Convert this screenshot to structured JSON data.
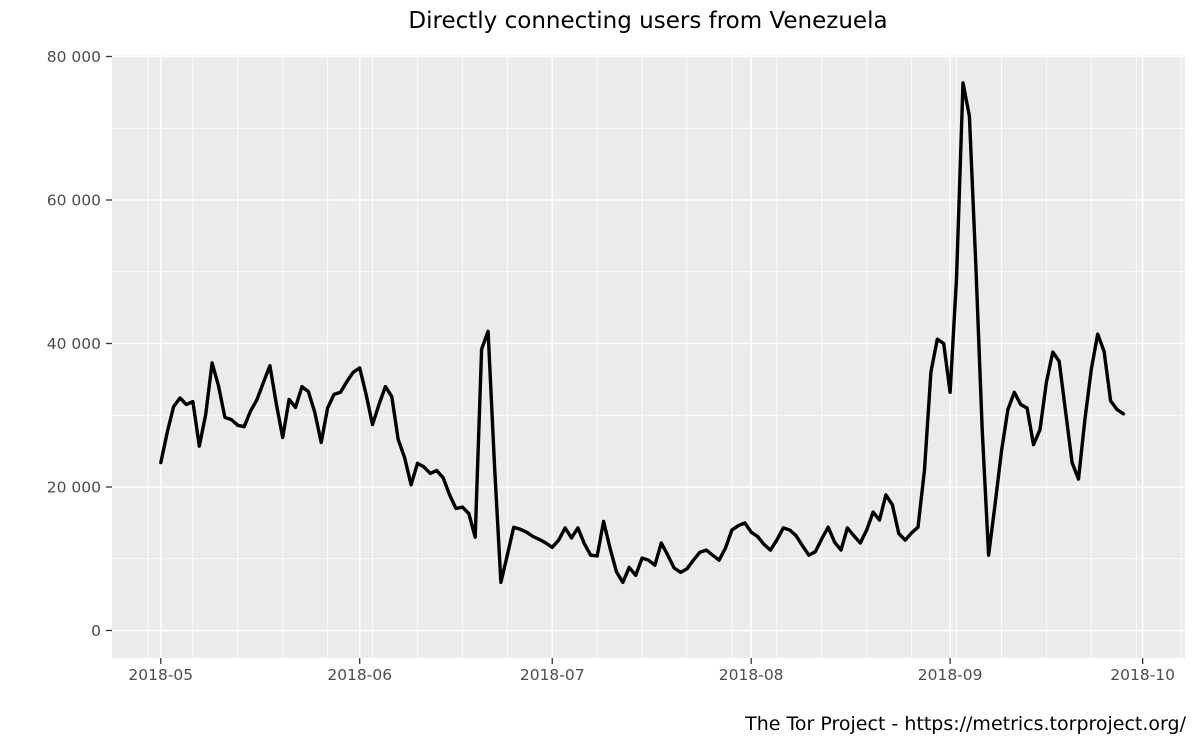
{
  "page": {
    "title": "Directly connecting users from Venezuela",
    "attribution": "The Tor Project - https://metrics.torproject.org/"
  },
  "colors": {
    "page_background": "#FFFFFF",
    "plot_background": "#EBEBEB",
    "gridline": "#FFFFFF",
    "line": "#000000",
    "tick_label": "#4D4D4D",
    "axis_tick": "#333333",
    "title": "#000000"
  },
  "chart_data": {
    "type": "line",
    "title": "Directly connecting users from Venezuela",
    "xlabel": "",
    "ylabel": "",
    "legend": false,
    "grid": true,
    "y_axis": {
      "lim": [
        0,
        80000
      ],
      "major_ticks": [
        0,
        20000,
        40000,
        60000,
        80000
      ],
      "tick_labels": [
        "0",
        "20 000",
        "40 000",
        "60 000",
        "80 000"
      ],
      "minor_ticks": [
        10000,
        30000,
        50000,
        70000
      ]
    },
    "x_axis": {
      "major_tick_dates": [
        "2018-05-01",
        "2018-06-01",
        "2018-07-01",
        "2018-08-01",
        "2018-09-01",
        "2018-10-01"
      ],
      "tick_labels": [
        "2018-05",
        "2018-06",
        "2018-07",
        "2018-08",
        "2018-09",
        "2018-10"
      ],
      "minor_weekly_start": "2018-04-29",
      "domain_days_rel_first_point": [
        -7.6,
        159.6
      ]
    },
    "x": [
      "2018-05-01",
      "2018-05-02",
      "2018-05-03",
      "2018-05-04",
      "2018-05-05",
      "2018-05-06",
      "2018-05-07",
      "2018-05-08",
      "2018-05-09",
      "2018-05-10",
      "2018-05-11",
      "2018-05-12",
      "2018-05-13",
      "2018-05-14",
      "2018-05-15",
      "2018-05-16",
      "2018-05-17",
      "2018-05-18",
      "2018-05-19",
      "2018-05-20",
      "2018-05-21",
      "2018-05-22",
      "2018-05-23",
      "2018-05-24",
      "2018-05-25",
      "2018-05-26",
      "2018-05-27",
      "2018-05-28",
      "2018-05-29",
      "2018-05-30",
      "2018-05-31",
      "2018-06-01",
      "2018-06-02",
      "2018-06-03",
      "2018-06-04",
      "2018-06-05",
      "2018-06-06",
      "2018-06-07",
      "2018-06-08",
      "2018-06-09",
      "2018-06-10",
      "2018-06-11",
      "2018-06-12",
      "2018-06-13",
      "2018-06-14",
      "2018-06-15",
      "2018-06-16",
      "2018-06-17",
      "2018-06-18",
      "2018-06-19",
      "2018-06-20",
      "2018-06-21",
      "2018-06-22",
      "2018-06-23",
      "2018-06-24",
      "2018-06-25",
      "2018-06-26",
      "2018-06-27",
      "2018-06-28",
      "2018-06-29",
      "2018-06-30",
      "2018-07-01",
      "2018-07-02",
      "2018-07-03",
      "2018-07-04",
      "2018-07-05",
      "2018-07-06",
      "2018-07-07",
      "2018-07-08",
      "2018-07-09",
      "2018-07-10",
      "2018-07-11",
      "2018-07-12",
      "2018-07-13",
      "2018-07-14",
      "2018-07-15",
      "2018-07-16",
      "2018-07-17",
      "2018-07-18",
      "2018-07-19",
      "2018-07-20",
      "2018-07-21",
      "2018-07-22",
      "2018-07-23",
      "2018-07-24",
      "2018-07-25",
      "2018-07-26",
      "2018-07-27",
      "2018-07-28",
      "2018-07-29",
      "2018-07-30",
      "2018-07-31",
      "2018-08-01",
      "2018-08-02",
      "2018-08-03",
      "2018-08-04",
      "2018-08-05",
      "2018-08-06",
      "2018-08-07",
      "2018-08-08",
      "2018-08-09",
      "2018-08-10",
      "2018-08-11",
      "2018-08-12",
      "2018-08-13",
      "2018-08-14",
      "2018-08-15",
      "2018-08-16",
      "2018-08-17",
      "2018-08-18",
      "2018-08-19",
      "2018-08-20",
      "2018-08-21",
      "2018-08-22",
      "2018-08-23",
      "2018-08-24",
      "2018-08-25",
      "2018-08-26",
      "2018-08-27",
      "2018-08-28",
      "2018-08-29",
      "2018-08-30",
      "2018-08-31",
      "2018-09-01",
      "2018-09-02",
      "2018-09-03",
      "2018-09-04",
      "2018-09-05",
      "2018-09-06",
      "2018-09-07",
      "2018-09-08",
      "2018-09-09",
      "2018-09-10",
      "2018-09-11",
      "2018-09-12",
      "2018-09-13",
      "2018-09-14",
      "2018-09-15",
      "2018-09-16",
      "2018-09-17",
      "2018-09-18",
      "2018-09-19",
      "2018-09-20",
      "2018-09-21",
      "2018-09-22",
      "2018-09-23",
      "2018-09-24",
      "2018-09-25",
      "2018-09-26",
      "2018-09-27",
      "2018-09-28"
    ],
    "values": [
      23400,
      27600,
      31200,
      32400,
      31500,
      31900,
      25700,
      30100,
      37300,
      34100,
      29700,
      29400,
      28600,
      28400,
      30600,
      32200,
      34600,
      36900,
      31600,
      26900,
      32200,
      31100,
      34000,
      33300,
      30400,
      26200,
      31000,
      32900,
      33200,
      34700,
      36000,
      36600,
      32900,
      28700,
      31500,
      34000,
      32600,
      26600,
      24100,
      20300,
      23300,
      22800,
      21900,
      22300,
      21300,
      18900,
      17000,
      17200,
      16300,
      13000,
      39200,
      41700,
      23000,
      6700,
      10500,
      14400,
      14100,
      13700,
      13100,
      12700,
      12200,
      11600,
      12600,
      14300,
      12900,
      14300,
      12100,
      10500,
      10400,
      15200,
      11500,
      8200,
      6700,
      8800,
      7700,
      10100,
      9800,
      9100,
      12200,
      10500,
      8700,
      8100,
      8600,
      9800,
      10900,
      11200,
      10500,
      9800,
      11500,
      14000,
      14600,
      15000,
      13700,
      13100,
      12000,
      11200,
      12600,
      14300,
      14000,
      13200,
      11800,
      10500,
      11000,
      12800,
      14400,
      12300,
      11200,
      14300,
      13200,
      12200,
      14000,
      16500,
      15400,
      18900,
      17500,
      13500,
      12600,
      13600,
      14400,
      22400,
      36000,
      40600,
      40000,
      33200,
      49000,
      76300,
      71700,
      51000,
      28000,
      10500,
      17500,
      25000,
      30800,
      33200,
      31500,
      31000,
      25900,
      28000,
      34600,
      38800,
      37500,
      30500,
      23400,
      21100,
      29400,
      36400,
      41300,
      38900,
      32000,
      30800,
      30200
    ]
  }
}
